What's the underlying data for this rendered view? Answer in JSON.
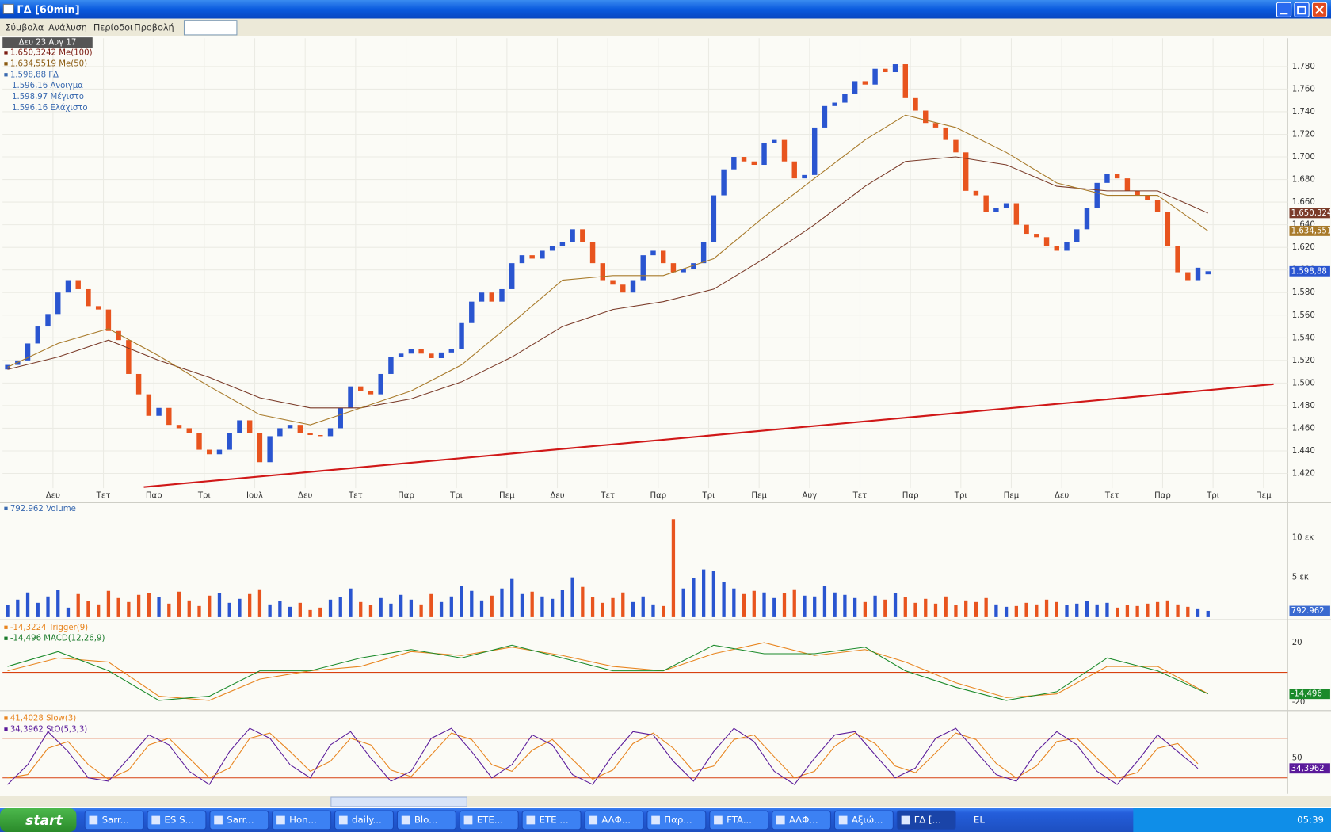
{
  "window": {
    "title": "ΓΔ [60min]",
    "menu": [
      "Σύμβολα",
      "Ανάλυση",
      "Περίοδοι",
      "Προβολή"
    ]
  },
  "chart_data": [
    {
      "type": "candlestick",
      "date_label": "Δευ 23 Αυγ 17",
      "legend": [
        {
          "text": "1.650,3242 Me(100)",
          "color": "#7a1a10"
        },
        {
          "text": "1.634,5519 Me(50)",
          "color": "#8a5a10"
        },
        {
          "text": "1.598,88 ΓΔ",
          "color": "#3a6ab0"
        }
      ],
      "ohlc": [
        "1.596,16 Ανοιγμα",
        "1.598,97 Μέγιστο",
        "1.596,16 Ελάχιστο"
      ],
      "up_color": "#2a55d0",
      "down_color": "#e8541e",
      "grid": true,
      "open": [
        1512,
        1516,
        1520,
        1535,
        1550,
        1561,
        1580,
        1591,
        1583,
        1568,
        1565,
        1546,
        1538,
        1508,
        1490,
        1471,
        1478,
        1463,
        1460,
        1456,
        1441,
        1437,
        1441,
        1456,
        1467,
        1456,
        1430,
        1453,
        1460,
        1463,
        1456,
        1454,
        1453,
        1460,
        1478,
        1497,
        1493,
        1490,
        1508,
        1523,
        1526,
        1530,
        1526,
        1522,
        1527,
        1530,
        1553,
        1572,
        1580,
        1572,
        1583,
        1606,
        1613,
        1610,
        1617,
        1621,
        1625,
        1636,
        1625,
        1606,
        1591,
        1587,
        1580,
        1591,
        1613,
        1617,
        1606,
        1598,
        1601,
        1606,
        1625,
        1666,
        1689,
        1700,
        1696,
        1693,
        1712,
        1715,
        1696,
        1681,
        1684,
        1726,
        1745,
        1748,
        1756,
        1767,
        1764,
        1778,
        1775,
        1782,
        1752,
        1741,
        1730,
        1726,
        1715,
        1704,
        1670,
        1666,
        1651,
        1655,
        1659,
        1640,
        1632,
        1629,
        1621,
        1617,
        1625,
        1636,
        1655,
        1677,
        1685,
        1681,
        1670,
        1666,
        1662,
        1651,
        1621,
        1598,
        1591,
        1596.16
      ],
      "close": [
        1516,
        1520,
        1535,
        1550,
        1561,
        1580,
        1591,
        1583,
        1568,
        1565,
        1546,
        1538,
        1508,
        1490,
        1471,
        1478,
        1463,
        1460,
        1456,
        1441,
        1437,
        1441,
        1456,
        1467,
        1456,
        1430,
        1453,
        1460,
        1463,
        1456,
        1454,
        1453,
        1460,
        1478,
        1497,
        1493,
        1490,
        1508,
        1523,
        1526,
        1530,
        1526,
        1522,
        1527,
        1530,
        1553,
        1572,
        1580,
        1572,
        1583,
        1606,
        1613,
        1610,
        1617,
        1621,
        1625,
        1636,
        1625,
        1606,
        1591,
        1587,
        1580,
        1591,
        1613,
        1617,
        1606,
        1598,
        1601,
        1606,
        1625,
        1666,
        1689,
        1700,
        1696,
        1693,
        1712,
        1715,
        1696,
        1681,
        1684,
        1726,
        1745,
        1748,
        1756,
        1767,
        1764,
        1778,
        1775,
        1782,
        1752,
        1741,
        1730,
        1726,
        1715,
        1704,
        1670,
        1666,
        1651,
        1655,
        1659,
        1640,
        1632,
        1629,
        1621,
        1617,
        1625,
        1636,
        1655,
        1677,
        1685,
        1681,
        1670,
        1666,
        1662,
        1651,
        1621,
        1598,
        1591,
        1602,
        1598.88
      ],
      "end_label": "1.598,88",
      "series": [
        {
          "color": "#7a3a28",
          "x": [
            0,
            5,
            10,
            15,
            20,
            25,
            30,
            35,
            40,
            45,
            50,
            55,
            60,
            65,
            70,
            75,
            80,
            85,
            89,
            94,
            99,
            104,
            109,
            114,
            119
          ],
          "values": [
            1512,
            1523,
            1538,
            1520,
            1505,
            1487,
            1478,
            1478,
            1486,
            1501,
            1523,
            1550,
            1565,
            1572,
            1583,
            1610,
            1640,
            1674,
            1696,
            1700,
            1693,
            1674,
            1670,
            1670,
            1650.3242
          ],
          "end_label": "1.650,324"
        },
        {
          "color": "#a87a2a",
          "x": [
            0,
            5,
            10,
            15,
            20,
            25,
            30,
            35,
            40,
            45,
            50,
            55,
            60,
            65,
            70,
            75,
            80,
            85,
            89,
            94,
            99,
            104,
            109,
            114,
            119
          ],
          "values": [
            1514,
            1535,
            1548,
            1524,
            1497,
            1472,
            1463,
            1478,
            1493,
            1516,
            1553,
            1591,
            1595,
            1595,
            1610,
            1647,
            1681,
            1715,
            1737,
            1726,
            1704,
            1677,
            1666,
            1666,
            1634.5519
          ],
          "end_label": "1.634,551"
        }
      ],
      "trendline": {
        "x": [
          13.5,
          125.5
        ],
        "y": [
          1408,
          1499
        ],
        "color": "#d01818"
      },
      "xlim": [
        -0.5,
        126.9
      ],
      "xticks": [
        {
          "value": 4.5,
          "label": "Δευ"
        },
        {
          "value": 9.5,
          "label": "Τετ"
        },
        {
          "value": 14.5,
          "label": "Παρ"
        },
        {
          "value": 19.5,
          "label": "Τρι"
        },
        {
          "value": 24.5,
          "label": "Ιουλ"
        },
        {
          "value": 29.5,
          "label": "Δευ"
        },
        {
          "value": 34.5,
          "label": "Τετ"
        },
        {
          "value": 39.5,
          "label": "Παρ"
        },
        {
          "value": 44.5,
          "label": "Τρι"
        },
        {
          "value": 49.5,
          "label": "Πεμ"
        },
        {
          "value": 54.5,
          "label": "Δευ"
        },
        {
          "value": 59.5,
          "label": "Τετ"
        },
        {
          "value": 64.5,
          "label": "Παρ"
        },
        {
          "value": 69.5,
          "label": "Τρι"
        },
        {
          "value": 74.5,
          "label": "Πεμ"
        },
        {
          "value": 79.5,
          "label": "Αυγ"
        },
        {
          "value": 84.5,
          "label": "Τετ"
        },
        {
          "value": 89.5,
          "label": "Παρ"
        },
        {
          "value": 94.5,
          "label": "Τρι"
        },
        {
          "value": 99.5,
          "label": "Πεμ"
        },
        {
          "value": 104.5,
          "label": "Δευ"
        },
        {
          "value": 109.5,
          "label": "Τετ"
        },
        {
          "value": 114.5,
          "label": "Παρ"
        },
        {
          "value": 119.5,
          "label": "Τρι"
        },
        {
          "value": 124.5,
          "label": "Πεμ"
        }
      ],
      "ylim": [
        1407,
        1805
      ],
      "yticks": [
        {
          "value": 1420,
          "label": "1.420"
        },
        {
          "value": 1440,
          "label": "1.440"
        },
        {
          "value": 1460,
          "label": "1.460"
        },
        {
          "value": 1480,
          "label": "1.480"
        },
        {
          "value": 1500,
          "label": "1.500"
        },
        {
          "value": 1520,
          "label": "1.520"
        },
        {
          "value": 1540,
          "label": "1.540"
        },
        {
          "value": 1560,
          "label": "1.560"
        },
        {
          "value": 1580,
          "label": "1.580"
        },
        {
          "value": 1600,
          "label": "1.600"
        },
        {
          "value": 1620,
          "label": "1.620"
        },
        {
          "value": 1640,
          "label": "1.640"
        },
        {
          "value": 1660,
          "label": "1.660"
        },
        {
          "value": 1680,
          "label": "1.680"
        },
        {
          "value": 1700,
          "label": "1.700"
        },
        {
          "value": 1720,
          "label": "1.720"
        },
        {
          "value": 1740,
          "label": "1.740"
        },
        {
          "value": 1760,
          "label": "1.760"
        },
        {
          "value": 1780,
          "label": "1.780"
        }
      ]
    },
    {
      "type": "bar",
      "legend": [
        {
          "text": "792.962 Volume",
          "color": "#3a6ab0"
        }
      ],
      "end_color": "#3a6ad0",
      "values": [
        1.5,
        2.2,
        3.1,
        1.8,
        2.6,
        3.4,
        1.2,
        2.9,
        2.0,
        1.6,
        3.3,
        2.4,
        1.9,
        2.8,
        3.0,
        2.5,
        1.7,
        3.2,
        2.1,
        1.4,
        2.7,
        3.0,
        1.8,
        2.3,
        2.9,
        3.5,
        1.6,
        2.0,
        1.3,
        1.8,
        0.9,
        1.2,
        2.2,
        2.5,
        3.6,
        1.9,
        1.5,
        2.4,
        1.7,
        2.8,
        2.2,
        1.6,
        2.9,
        1.9,
        2.6,
        3.9,
        3.3,
        2.1,
        2.7,
        3.6,
        4.8,
        2.9,
        3.2,
        2.6,
        2.3,
        3.4,
        5.0,
        3.8,
        2.5,
        1.8,
        2.4,
        3.1,
        1.9,
        2.6,
        1.6,
        1.4,
        12.3,
        3.6,
        4.9,
        6.0,
        5.8,
        4.4,
        3.6,
        2.9,
        3.3,
        3.1,
        2.4,
        3.0,
        3.5,
        2.7,
        2.6,
        3.9,
        3.1,
        2.8,
        2.4,
        1.9,
        2.7,
        2.2,
        3.0,
        2.5,
        1.8,
        2.3,
        1.7,
        2.6,
        1.5,
        2.1,
        1.9,
        2.4,
        1.6,
        1.3,
        1.4,
        1.8,
        1.6,
        2.2,
        1.9,
        1.5,
        1.7,
        2.0,
        1.6,
        1.8,
        1.2,
        1.5,
        1.4,
        1.7,
        1.9,
        2.1,
        1.6,
        1.3,
        1.1,
        0.792962
      ],
      "end_label": "792.962",
      "ylim": [
        0,
        13
      ],
      "yticks": [
        {
          "value": 5,
          "label": "5 εκ"
        },
        {
          "value": 10,
          "label": "10 εκ"
        }
      ]
    },
    {
      "type": "line",
      "legend": [
        {
          "text": "-14,3224 Trigger(9)",
          "color": "#e8841e"
        },
        {
          "text": "-14,496 MACD(12,26,9)",
          "color": "#1a7a2a"
        }
      ],
      "x": [
        0,
        5,
        10,
        15,
        20,
        25,
        30,
        35,
        40,
        45,
        50,
        55,
        60,
        65,
        70,
        75,
        80,
        85,
        89,
        94,
        99,
        104,
        109,
        114,
        119
      ],
      "series": [
        {
          "color": "#e8841e",
          "values": [
            1,
            9.7,
            7,
            -16,
            -18.9,
            -4.6,
            1,
            4,
            14,
            11.4,
            17,
            11.4,
            4,
            1,
            12.6,
            20,
            11.4,
            15.4,
            7,
            -7,
            -17,
            -14.5,
            4,
            4,
            -14.3224
          ]
        },
        {
          "color": "#1a8a2a",
          "values": [
            4,
            14,
            1.1,
            -18.9,
            -16,
            1,
            1,
            9.7,
            15.4,
            9.7,
            18.3,
            9.7,
            1,
            1,
            18.3,
            12.6,
            12.6,
            17,
            1,
            -10,
            -18.9,
            -13,
            9.7,
            1,
            -14.496
          ],
          "end_label": "-14,496"
        }
      ],
      "reference_lines": [
        0
      ],
      "reference_color": "#d84010",
      "ylim": [
        -24.6,
        32.6
      ],
      "yticks": [
        -20,
        20
      ]
    },
    {
      "type": "line",
      "legend": [
        {
          "text": "41,4028 Slow(3)",
          "color": "#e8841e"
        },
        {
          "text": "34,3962 StO(5,3,3)",
          "color": "#5a1a9a"
        }
      ],
      "x": [
        0,
        2,
        4,
        6,
        8,
        10,
        12,
        14,
        16,
        18,
        20,
        22,
        24,
        26,
        28,
        30,
        32,
        34,
        36,
        38,
        40,
        42,
        44,
        46,
        48,
        50,
        52,
        54,
        56,
        58,
        60,
        62,
        64,
        66,
        68,
        70,
        72,
        74,
        76,
        78,
        80,
        82,
        84,
        86,
        88,
        90,
        92,
        94,
        96,
        98,
        100,
        102,
        104,
        106,
        108,
        110,
        112,
        114,
        116,
        118
      ],
      "series": [
        {
          "color": "#e8841e",
          "values": [
            20,
            25,
            65,
            75,
            40,
            18,
            32,
            70,
            80,
            50,
            20,
            35,
            80,
            88,
            60,
            30,
            45,
            80,
            70,
            32,
            22,
            55,
            88,
            78,
            40,
            30,
            62,
            78,
            48,
            18,
            32,
            72,
            88,
            65,
            30,
            38,
            78,
            85,
            52,
            20,
            30,
            68,
            88,
            72,
            38,
            28,
            58,
            88,
            78,
            42,
            20,
            38,
            75,
            80,
            50,
            20,
            28,
            65,
            72,
            41.4028
          ]
        },
        {
          "color": "#5a1a9a",
          "values": [
            10,
            40,
            90,
            60,
            20,
            15,
            50,
            85,
            70,
            30,
            10,
            60,
            95,
            80,
            40,
            20,
            70,
            90,
            50,
            15,
            30,
            80,
            95,
            60,
            20,
            40,
            85,
            70,
            25,
            10,
            55,
            90,
            85,
            45,
            15,
            60,
            95,
            75,
            30,
            10,
            50,
            85,
            90,
            55,
            20,
            35,
            80,
            95,
            60,
            25,
            15,
            60,
            90,
            70,
            30,
            10,
            45,
            85,
            60,
            34.3962
          ],
          "end_label": "34,3962"
        }
      ],
      "reference_lines": [
        20,
        80
      ],
      "reference_color": "#d84010",
      "ylim": [
        -4,
        118
      ],
      "yticks": [
        50
      ]
    }
  ],
  "taskbar": {
    "start": "start",
    "items": [
      "Sarr...",
      "ES S...",
      "Sarr...",
      "Hon...",
      "daily...",
      "Blo...",
      "ETE...",
      "ETE ...",
      "ΑΛΦ...",
      "Παρ...",
      "FTA...",
      "ΑΛΦ...",
      "Αξιώ...",
      "ΓΔ [..."
    ],
    "lang": "EL",
    "clock": "05:39"
  }
}
